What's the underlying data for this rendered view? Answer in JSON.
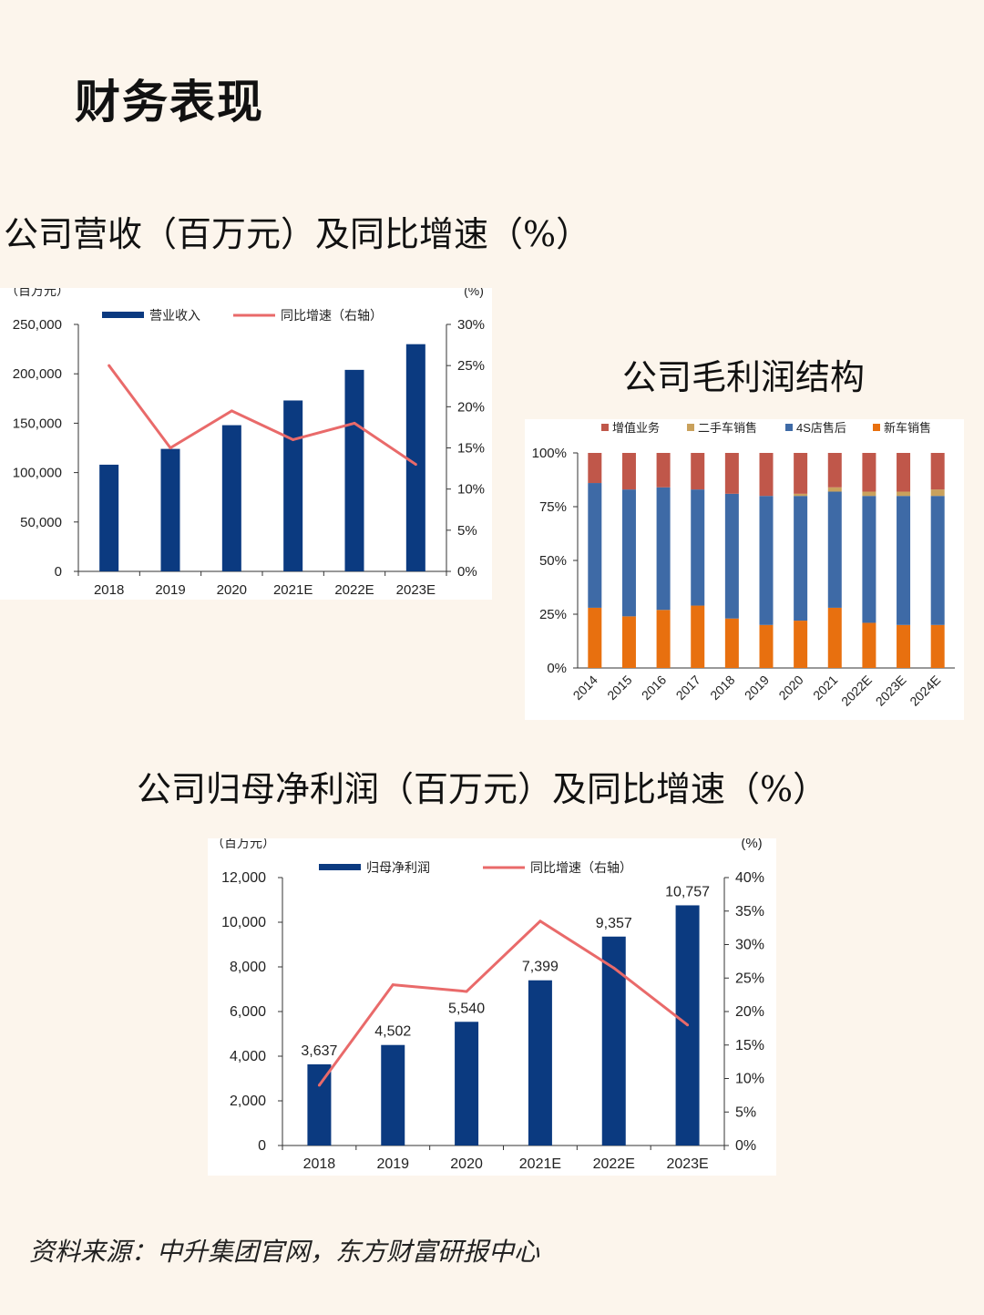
{
  "page": {
    "title": "财务表现",
    "section1_title": "公司营收（百万元）及同比增速（%）",
    "section2_title": "公司毛利润结构",
    "section3_title": "公司归母净利润（百万元）及同比增速（%）",
    "source": "资料来源：中升集团官网，东方财富研报中心"
  },
  "colors": {
    "bar_navy": "#0b3a80",
    "line_red": "#e96a6a",
    "value_added": "#c0574a",
    "used_car": "#c9a15c",
    "after_sales": "#3e6aa6",
    "new_car": "#e8700f"
  },
  "chart_data": [
    {
      "id": "revenue",
      "type": "bar",
      "title": "公司营收（百万元）及同比增速（%）",
      "left_unit": "（百万元）",
      "right_unit": "(%)",
      "categories": [
        "2018",
        "2019",
        "2020",
        "2021E",
        "2022E",
        "2023E"
      ],
      "series": [
        {
          "name": "营业收入",
          "type": "bar",
          "axis": "left",
          "values": [
            108000,
            124000,
            148000,
            173000,
            204000,
            230000
          ]
        },
        {
          "name": "同比增速（右轴）",
          "type": "line",
          "axis": "right",
          "values": [
            25,
            15,
            19.5,
            16,
            18,
            13
          ]
        }
      ],
      "ylim_left": [
        0,
        250000
      ],
      "yticks_left": [
        "0",
        "50,000",
        "100,000",
        "150,000",
        "200,000",
        "250,000"
      ],
      "ylim_right": [
        0,
        30
      ],
      "yticks_right": [
        "0%",
        "5%",
        "10%",
        "15%",
        "20%",
        "25%",
        "30%"
      ]
    },
    {
      "id": "gross_profit_structure",
      "type": "bar",
      "stacked": true,
      "title": "公司毛利润结构",
      "categories": [
        "2014",
        "2015",
        "2016",
        "2017",
        "2018",
        "2019",
        "2020",
        "2021",
        "2022E",
        "2023E",
        "2024E"
      ],
      "series": [
        {
          "name": "新车销售",
          "values": [
            28,
            24,
            27,
            29,
            23,
            20,
            22,
            28,
            21,
            20,
            20
          ]
        },
        {
          "name": "4S店售后",
          "values": [
            58,
            59,
            57,
            54,
            58,
            60,
            58,
            54,
            59,
            60,
            60
          ]
        },
        {
          "name": "二手车销售",
          "values": [
            0,
            0,
            0,
            0,
            0,
            0,
            1,
            2,
            2,
            2,
            3
          ]
        },
        {
          "name": "增值业务",
          "values": [
            14,
            17,
            16,
            17,
            19,
            20,
            19,
            16,
            18,
            18,
            17
          ]
        }
      ],
      "legend_order": [
        "增值业务",
        "二手车销售",
        "4S店售后",
        "新车销售"
      ],
      "ylim": [
        0,
        100
      ],
      "yticks": [
        "0%",
        "25%",
        "50%",
        "75%",
        "100%"
      ]
    },
    {
      "id": "net_profit",
      "type": "bar",
      "title": "公司归母净利润（百万元）及同比增速（%）",
      "left_unit": "（百万元）",
      "right_unit": "(%)",
      "categories": [
        "2018",
        "2019",
        "2020",
        "2021E",
        "2022E",
        "2023E"
      ],
      "series": [
        {
          "name": "归母净利润",
          "type": "bar",
          "axis": "left",
          "values": [
            3637,
            4502,
            5540,
            7399,
            9357,
            10757
          ],
          "labels": [
            "3,637",
            "4,502",
            "5,540",
            "7,399",
            "9,357",
            "10,757"
          ]
        },
        {
          "name": "同比增速（右轴）",
          "type": "line",
          "axis": "right",
          "values": [
            9,
            24,
            23,
            33.5,
            26.5,
            18
          ]
        }
      ],
      "ylim_left": [
        0,
        12000
      ],
      "yticks_left": [
        "0",
        "2,000",
        "4,000",
        "6,000",
        "8,000",
        "10,000",
        "12,000"
      ],
      "ylim_right": [
        0,
        40
      ],
      "yticks_right": [
        "0%",
        "5%",
        "10%",
        "15%",
        "20%",
        "25%",
        "30%",
        "35%",
        "40%"
      ]
    }
  ]
}
